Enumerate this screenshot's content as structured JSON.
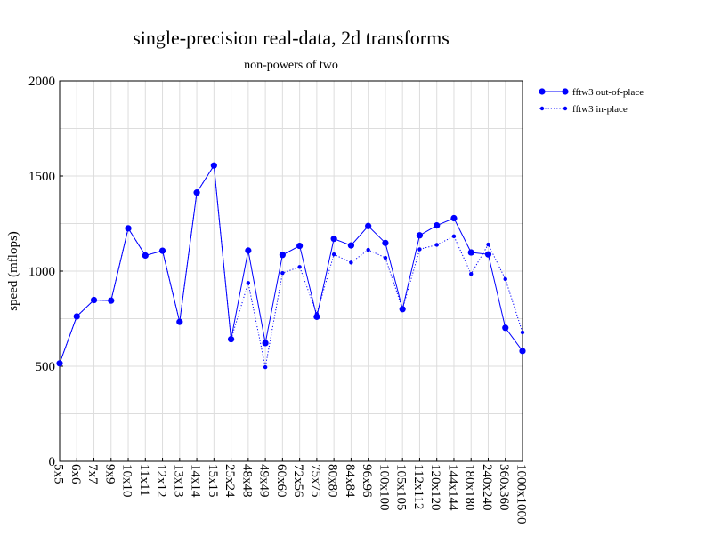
{
  "chart_data": {
    "type": "line",
    "title": "single-precision real-data, 2d transforms",
    "subtitle": "non-powers of two",
    "xlabel": "",
    "ylabel": "speed (mflops)",
    "ylim": [
      0,
      2000
    ],
    "yticks": [
      0,
      500,
      1000,
      1500,
      2000
    ],
    "grid": true,
    "legend_position": "top-right outside",
    "categories": [
      "5x5",
      "6x6",
      "7x7",
      "9x9",
      "10x10",
      "11x11",
      "12x12",
      "13x13",
      "14x14",
      "15x15",
      "25x24",
      "48x48",
      "49x49",
      "60x60",
      "72x56",
      "75x75",
      "80x80",
      "84x84",
      "96x96",
      "100x100",
      "105x105",
      "112x112",
      "120x120",
      "144x144",
      "180x180",
      "240x240",
      "360x360",
      "1000x1000"
    ],
    "series": [
      {
        "name": "fftw3 out-of-place",
        "color": "#0000ff",
        "line_style": "solid",
        "marker": "large-dot",
        "values": [
          515,
          762,
          848,
          845,
          1225,
          1082,
          1107,
          733,
          1413,
          1555,
          642,
          1108,
          622,
          1085,
          1133,
          760,
          1170,
          1135,
          1237,
          1148,
          800,
          1188,
          1240,
          1278,
          1098,
          1088,
          702,
          580
        ]
      },
      {
        "name": "fftw3 in-place",
        "color": "#0000ff",
        "line_style": "dotted",
        "marker": "small-dot",
        "values": [
          515,
          762,
          848,
          845,
          1225,
          1082,
          1107,
          733,
          1413,
          1555,
          642,
          938,
          495,
          990,
          1022,
          775,
          1088,
          1045,
          1112,
          1070,
          800,
          1115,
          1138,
          1183,
          985,
          1140,
          958,
          678
        ]
      }
    ]
  }
}
